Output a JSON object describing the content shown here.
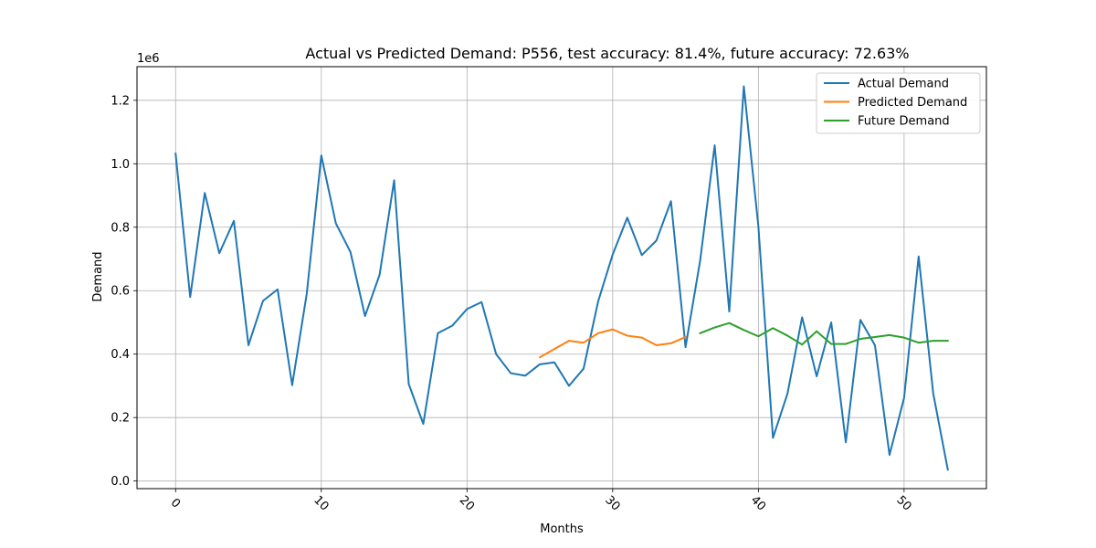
{
  "chart_data": {
    "type": "line",
    "title": "Actual vs Predicted Demand: P556, test accuracy: 81.4%, future accuracy: 72.63%",
    "xlabel": "Months",
    "ylabel": "Demand",
    "y_scale_note": "1e6",
    "xlim": [
      -2.65,
      55.65
    ],
    "ylim": [
      -24000,
      1306000
    ],
    "x_ticks": [
      0,
      10,
      20,
      30,
      40,
      50
    ],
    "x_tick_labels": [
      "0",
      "10",
      "20",
      "30",
      "40",
      "50"
    ],
    "y_ticks": [
      0,
      200000,
      400000,
      600000,
      800000,
      1000000,
      1200000
    ],
    "y_tick_labels": [
      "0.0",
      "0.2",
      "0.4",
      "0.6",
      "0.8",
      "1.0",
      "1.2"
    ],
    "grid": true,
    "legend_position": "top-right",
    "series": [
      {
        "name": "Actual Demand",
        "color": "#1f77b4",
        "x": [
          0,
          1,
          2,
          3,
          4,
          5,
          6,
          7,
          8,
          9,
          10,
          11,
          12,
          13,
          14,
          15,
          16,
          17,
          18,
          19,
          20,
          21,
          22,
          23,
          24,
          25,
          26,
          27,
          28,
          29,
          30,
          31,
          32,
          33,
          34,
          35,
          36,
          37,
          38,
          39,
          40,
          41,
          42,
          43,
          44,
          45,
          46,
          47,
          48,
          49,
          50,
          51,
          52,
          53
        ],
        "values": [
          1032000,
          580000,
          908000,
          718000,
          820000,
          428000,
          568000,
          604000,
          302000,
          590000,
          1026000,
          812000,
          722000,
          520000,
          650000,
          948000,
          306000,
          180000,
          466000,
          490000,
          542000,
          564000,
          400000,
          340000,
          332000,
          368000,
          374000,
          300000,
          354000,
          566000,
          714000,
          830000,
          712000,
          758000,
          882000,
          422000,
          694000,
          1058000,
          534000,
          1244000,
          802000,
          136000,
          276000,
          516000,
          330000,
          500000,
          122000,
          508000,
          428000,
          82000,
          262000,
          708000,
          276000,
          36000
        ]
      },
      {
        "name": "Predicted Demand",
        "color": "#ff7f0e",
        "x": [
          25,
          26,
          27,
          28,
          29,
          30,
          31,
          32,
          33,
          34,
          35
        ],
        "values": [
          390000,
          416000,
          442000,
          436000,
          466000,
          478000,
          458000,
          452000,
          428000,
          434000,
          454000
        ]
      },
      {
        "name": "Future Demand",
        "color": "#2ca02c",
        "x": [
          36,
          37,
          38,
          39,
          40,
          41,
          42,
          43,
          44,
          45,
          46,
          47,
          48,
          49,
          50,
          51,
          52,
          53
        ],
        "values": [
          466000,
          484000,
          498000,
          476000,
          456000,
          482000,
          458000,
          430000,
          472000,
          432000,
          432000,
          448000,
          454000,
          460000,
          452000,
          436000,
          442000,
          442000
        ]
      }
    ]
  }
}
